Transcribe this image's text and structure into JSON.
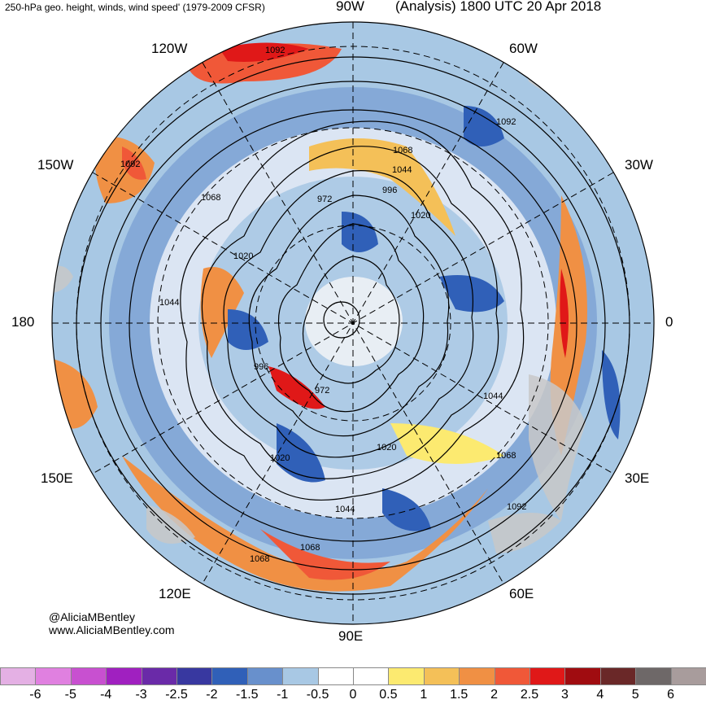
{
  "header": {
    "title_left": "250-hPa geo. height, winds, wind speed' (1979-2009 CFSR)",
    "title_right": "(Analysis) 1800 UTC 20 Apr 2018"
  },
  "map": {
    "longitude_labels": [
      "90W",
      "60W",
      "30W",
      "0",
      "30E",
      "60E",
      "90E",
      "120E",
      "150E",
      "180",
      "150W",
      "120W"
    ],
    "contour_labels": [
      "1092",
      "1092",
      "1092",
      "1092",
      "1068",
      "1068",
      "1068",
      "1068",
      "1068",
      "1044",
      "1044",
      "1044",
      "1044",
      "1020",
      "1020",
      "1020",
      "1020",
      "996",
      "996",
      "972",
      "972"
    ],
    "colors": {
      "land": "#c8c8c8",
      "contour": "#000000",
      "graticule": "#000000"
    }
  },
  "credit": {
    "line1": "@AliciaMBentley",
    "line2": "www.AliciaMBentley.com"
  },
  "colorbar": {
    "labels": [
      "-6",
      "-5",
      "-4",
      "-3",
      "-2.5",
      "-2",
      "-1.5",
      "-1",
      "-0.5",
      "0",
      "0.5",
      "1",
      "1.5",
      "2",
      "2.5",
      "3",
      "4",
      "5",
      "6"
    ],
    "colors": [
      "#e4b0e4",
      "#e080e0",
      "#c850d0",
      "#a020c0",
      "#6a2aa8",
      "#3838a0",
      "#3060b8",
      "#6890cc",
      "#a8c8e4",
      "#ffffff",
      "#ffffff",
      "#fcea70",
      "#f4c058",
      "#f09044",
      "#f05838",
      "#e01818",
      "#a00c10",
      "#6a2828",
      "#6e6868",
      "#a89c9c"
    ]
  }
}
